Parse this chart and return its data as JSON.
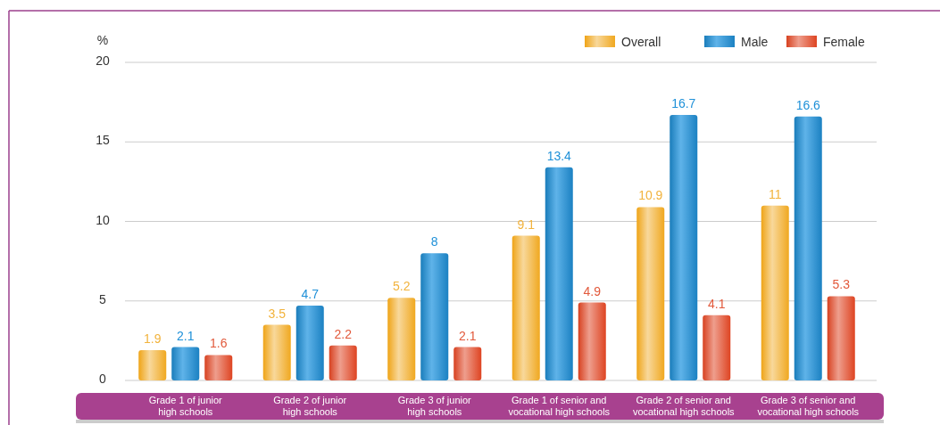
{
  "chart_data": {
    "type": "bar",
    "ylabel": "%",
    "categories": [
      "Grade 1 of junior high schools",
      "Grade 2 of junior high schools",
      "Grade 3 of junior high schools",
      "Grade 1 of senior and vocational high schools",
      "Grade 2 of senior and vocational high schools",
      "Grade 3 of senior and vocational high schools"
    ],
    "series": [
      {
        "name": "Overall",
        "color": "#f2b33d",
        "values": [
          1.9,
          3.5,
          5.2,
          9.1,
          10.9,
          11
        ]
      },
      {
        "name": "Male",
        "color": "#1e90d8",
        "values": [
          2.1,
          4.7,
          8,
          13.4,
          16.7,
          16.6
        ]
      },
      {
        "name": "Female",
        "color": "#e2593b",
        "values": [
          1.6,
          2.2,
          2.1,
          4.9,
          4.1,
          5.3
        ]
      }
    ],
    "ylim": [
      0,
      20
    ],
    "yticks": [
      0,
      5,
      10,
      15,
      20
    ],
    "grid": "y",
    "legend": "top right",
    "data_labels": true
  }
}
